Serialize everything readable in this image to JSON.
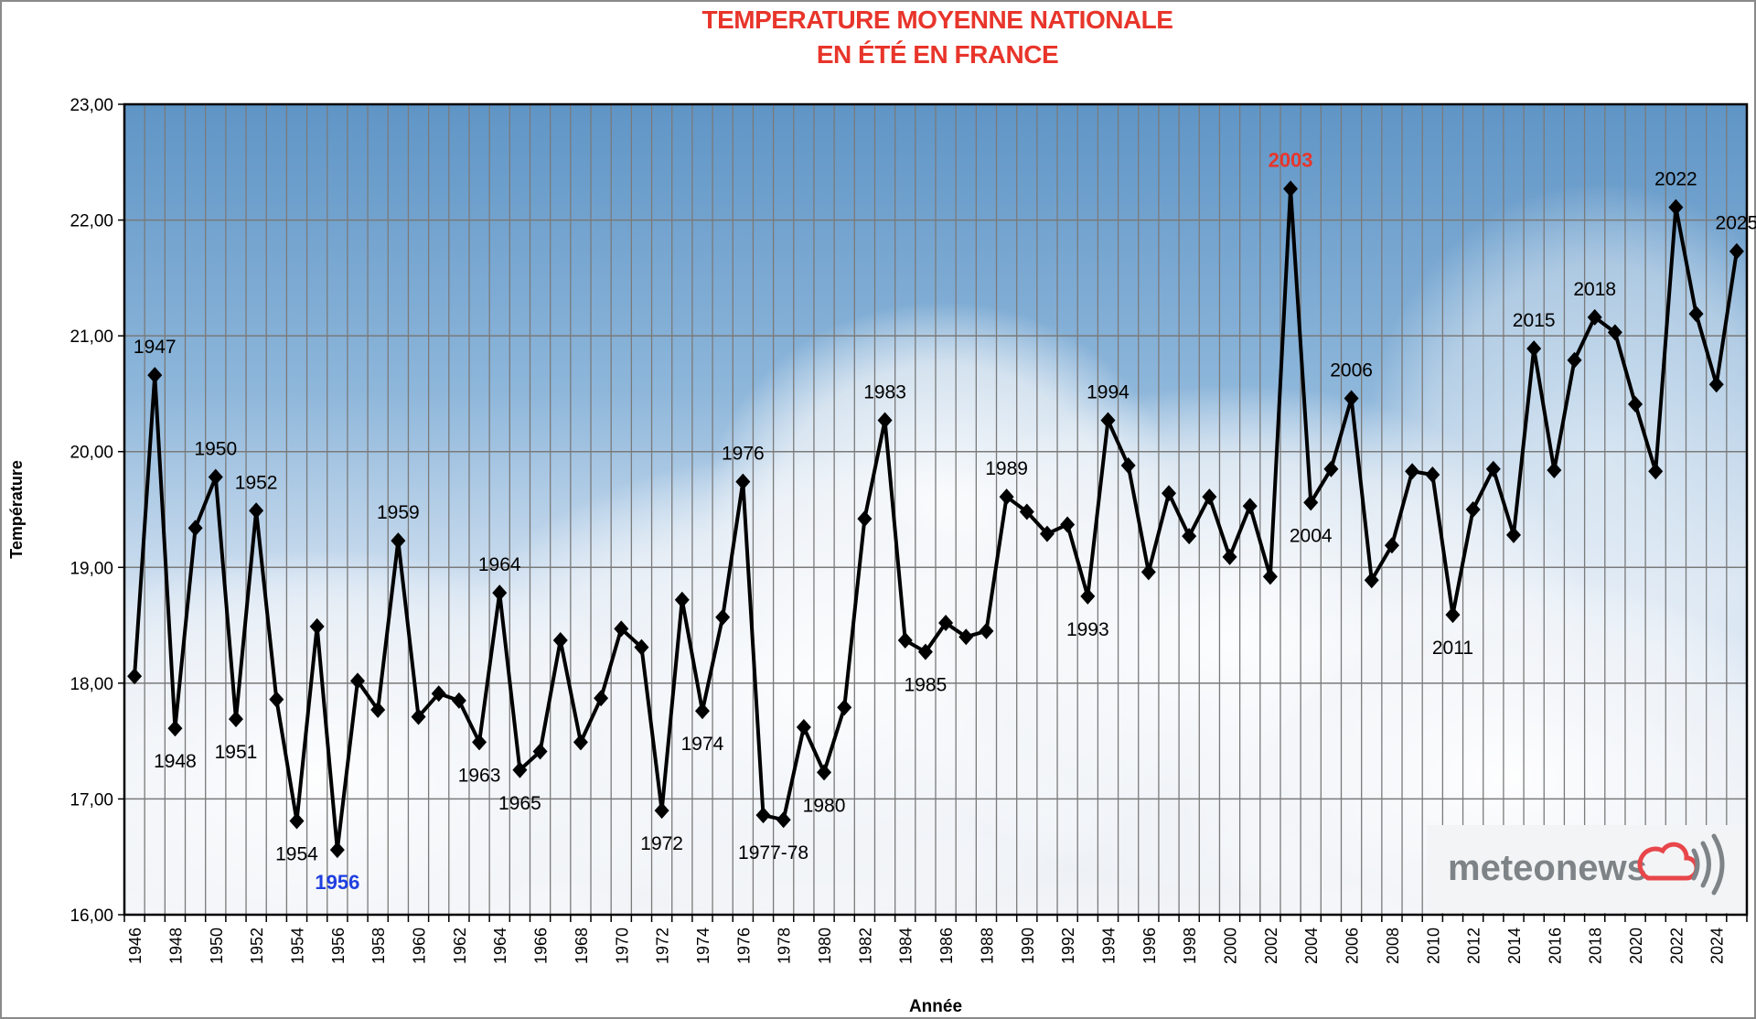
{
  "chart_data": {
    "type": "line",
    "title_line1": "TEMPERATURE MOYENNE NATIONALE",
    "title_line2": "EN ÉTÉ EN FRANCE",
    "xlabel": "Année",
    "ylabel": "Température",
    "ylim": [
      16,
      23
    ],
    "yticks": [
      "16,00",
      "17,00",
      "18,00",
      "19,00",
      "20,00",
      "21,00",
      "22,00",
      "23,00"
    ],
    "grid": true,
    "x": [
      1946,
      1947,
      1948,
      1949,
      1950,
      1951,
      1952,
      1953,
      1954,
      1955,
      1956,
      1957,
      1958,
      1959,
      1960,
      1961,
      1962,
      1963,
      1964,
      1965,
      1966,
      1967,
      1968,
      1969,
      1970,
      1971,
      1972,
      1973,
      1974,
      1975,
      1976,
      1977,
      1978,
      1979,
      1980,
      1981,
      1982,
      1983,
      1984,
      1985,
      1986,
      1987,
      1988,
      1989,
      1990,
      1991,
      1992,
      1993,
      1994,
      1995,
      1996,
      1997,
      1998,
      1999,
      2000,
      2001,
      2002,
      2003,
      2004,
      2005,
      2006,
      2007,
      2008,
      2009,
      2010,
      2011,
      2012,
      2013,
      2014,
      2015,
      2016,
      2017,
      2018,
      2019,
      2020,
      2021,
      2022,
      2023,
      2024,
      2025
    ],
    "values": [
      18.06,
      20.66,
      17.61,
      19.34,
      19.78,
      17.69,
      19.49,
      17.86,
      16.81,
      18.49,
      16.56,
      18.02,
      17.77,
      19.23,
      17.71,
      17.91,
      17.85,
      17.49,
      18.78,
      17.25,
      17.41,
      18.37,
      17.49,
      17.87,
      18.47,
      18.31,
      16.9,
      18.72,
      17.76,
      18.57,
      19.74,
      16.86,
      16.82,
      17.62,
      17.23,
      17.79,
      19.42,
      20.27,
      18.37,
      18.27,
      18.52,
      18.4,
      18.45,
      19.61,
      19.48,
      19.29,
      19.37,
      18.75,
      20.27,
      19.88,
      18.96,
      19.64,
      19.27,
      19.61,
      19.09,
      19.53,
      18.92,
      22.27,
      19.56,
      19.85,
      20.46,
      18.89,
      19.19,
      19.83,
      19.8,
      18.59,
      19.5,
      19.85,
      19.28,
      20.89,
      19.84,
      20.79,
      21.16,
      21.03,
      20.41,
      19.83,
      22.11,
      21.19,
      20.58,
      21.73
    ],
    "line_color": "#000000",
    "annotations": [
      {
        "text": "1947",
        "year": 1947,
        "pos": "above"
      },
      {
        "text": "1948",
        "year": 1948,
        "pos": "below"
      },
      {
        "text": "1950",
        "year": 1950,
        "pos": "above"
      },
      {
        "text": "1951",
        "year": 1951,
        "pos": "below"
      },
      {
        "text": "1952",
        "year": 1952,
        "pos": "above"
      },
      {
        "text": "1954",
        "year": 1954,
        "pos": "below"
      },
      {
        "text": "1956",
        "year": 1956,
        "pos": "below",
        "color": "#1f3fe0",
        "bold": true
      },
      {
        "text": "1959",
        "year": 1959,
        "pos": "above"
      },
      {
        "text": "1963",
        "year": 1963,
        "pos": "below"
      },
      {
        "text": "1964",
        "year": 1964,
        "pos": "above"
      },
      {
        "text": "1965",
        "year": 1965,
        "pos": "below"
      },
      {
        "text": "1972",
        "year": 1972,
        "pos": "below"
      },
      {
        "text": "1974",
        "year": 1974,
        "pos": "below"
      },
      {
        "text": "1976",
        "year": 1976,
        "pos": "above"
      },
      {
        "text": "1977-78",
        "year": 1977.5,
        "pos": "below"
      },
      {
        "text": "1980",
        "year": 1980,
        "pos": "below"
      },
      {
        "text": "1983",
        "year": 1983,
        "pos": "above"
      },
      {
        "text": "1985",
        "year": 1985,
        "pos": "below"
      },
      {
        "text": "1989",
        "year": 1989,
        "pos": "above"
      },
      {
        "text": "1993",
        "year": 1993,
        "pos": "below"
      },
      {
        "text": "1994",
        "year": 1994,
        "pos": "above"
      },
      {
        "text": "2003",
        "year": 2003,
        "pos": "above",
        "color": "#e8352b",
        "bold": true
      },
      {
        "text": "2004",
        "year": 2004,
        "pos": "below"
      },
      {
        "text": "2006",
        "year": 2006,
        "pos": "above"
      },
      {
        "text": "2011",
        "year": 2011,
        "pos": "below"
      },
      {
        "text": "2015",
        "year": 2015,
        "pos": "above"
      },
      {
        "text": "2018",
        "year": 2018,
        "pos": "above"
      },
      {
        "text": "2022",
        "year": 2022,
        "pos": "above"
      },
      {
        "text": "2025",
        "year": 2025,
        "pos": "above"
      }
    ]
  },
  "logo": {
    "text": "meteonews",
    "cloud_color": "#e8464a",
    "text_color": "#7d8387"
  }
}
